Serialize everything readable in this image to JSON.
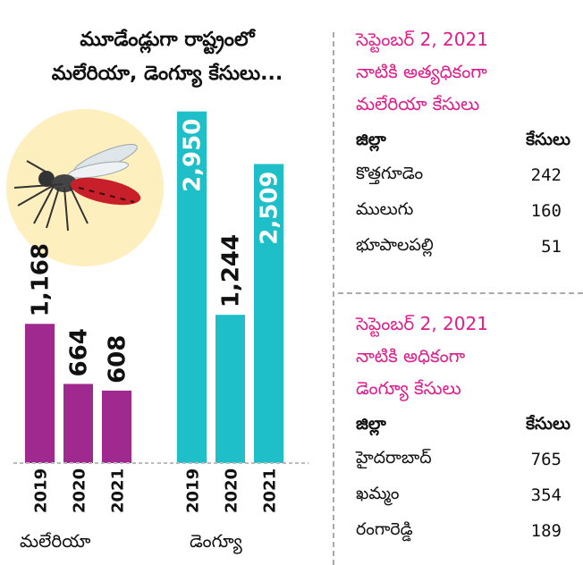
{
  "title_lines": [
    "మూడేండ్లుగా రాష్ట్రంలో",
    "మలేరియా, డెంగ్యూ కేసులు..."
  ],
  "chart_data": {
    "type": "bar",
    "groups": [
      {
        "name": "మలేరియా",
        "categories": [
          "2019",
          "2020",
          "2021"
        ],
        "values": [
          1168,
          664,
          608
        ],
        "labels": [
          "1,168",
          "664",
          "608"
        ],
        "color": "#a0298f"
      },
      {
        "name": "డెంగ్యూ",
        "categories": [
          "2019",
          "2020",
          "2021"
        ],
        "values": [
          2950,
          1244,
          2509
        ],
        "labels": [
          "2,950",
          "1,244",
          "2,509"
        ],
        "color": "#1fbfc9"
      }
    ],
    "ylim": [
      0,
      3000
    ]
  },
  "colors": {
    "malaria": "#a0298f",
    "dengue": "#1fbfc9",
    "heading": "#e01d8c",
    "glow": "#fde9a8"
  },
  "panels": [
    {
      "heading_lines": [
        "సెప్టెంబర్ 2, 2021",
        "నాటికి అత్యధికంగా",
        "మలేరియా కేసులు"
      ],
      "col_district": "జిల్లా",
      "col_cases": "కేసులు",
      "rows": [
        {
          "district": "కొత్తగూడెం",
          "cases": "242"
        },
        {
          "district": "ములుగు",
          "cases": "160"
        },
        {
          "district": "భూపాలపల్లి",
          "cases": "51"
        }
      ]
    },
    {
      "heading_lines": [
        "సెప్టెంబర్ 2, 2021",
        "నాటికి అధికంగా",
        "డెంగ్యూ కేసులు"
      ],
      "col_district": "జిల్లా",
      "col_cases": "కేసులు",
      "rows": [
        {
          "district": "హైదరాబాద్",
          "cases": "765"
        },
        {
          "district": "ఖమ్మం",
          "cases": "354"
        },
        {
          "district": "రంగారెడ్డి",
          "cases": "189"
        }
      ]
    }
  ]
}
